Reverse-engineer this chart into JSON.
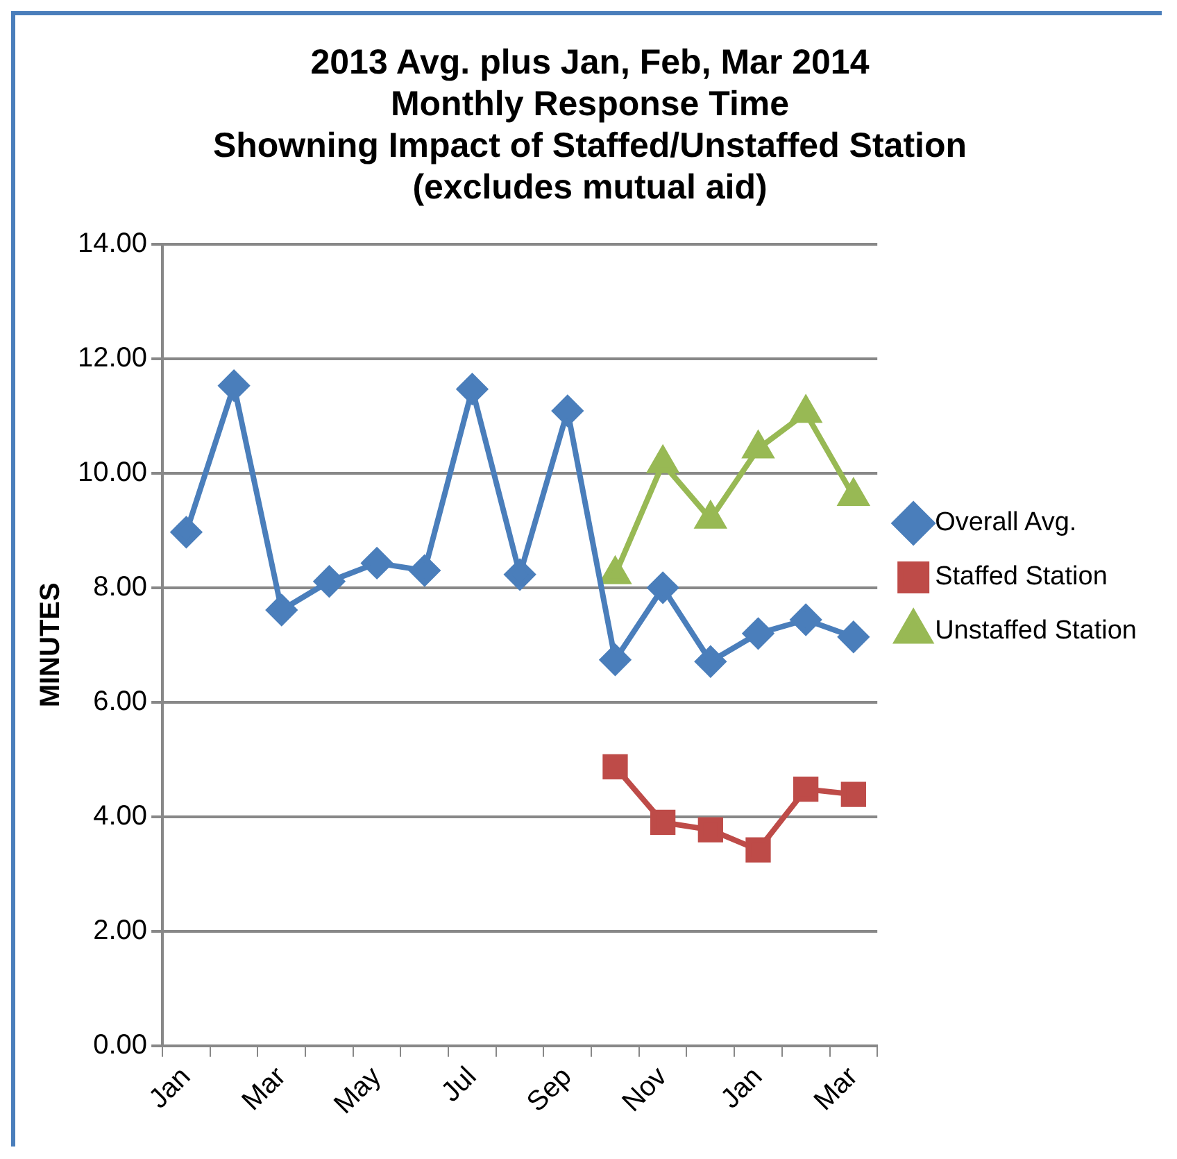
{
  "chart_data": {
    "type": "line",
    "title": [
      "2013 Avg. plus Jan, Feb, Mar 2014",
      "Monthly Response Time",
      "Showning Impact of Staffed/Unstaffed Station",
      "(excludes mutual aid)"
    ],
    "ylabel": "MINUTES",
    "categories": [
      "Jan",
      null,
      "Mar",
      null,
      "May",
      null,
      "Jul",
      null,
      "Sep",
      null,
      "Nov",
      null,
      "Jan",
      null,
      "Mar"
    ],
    "series": [
      {
        "name": "Overall Avg.",
        "color": "#4a7ebb",
        "marker": "diamond",
        "values": [
          8.97,
          11.53,
          7.61,
          8.11,
          8.43,
          8.3,
          11.47,
          8.23,
          11.09,
          6.74,
          8.0,
          6.71,
          7.2,
          7.44,
          7.14
        ]
      },
      {
        "name": "Staffed Station",
        "color": "#be4b48",
        "marker": "square",
        "values": [
          null,
          null,
          null,
          null,
          null,
          null,
          null,
          null,
          null,
          4.87,
          3.9,
          3.77,
          3.42,
          4.48,
          4.39
        ]
      },
      {
        "name": "Unstaffed Station",
        "color": "#98b954",
        "marker": "triangle",
        "values": [
          null,
          null,
          null,
          null,
          null,
          null,
          null,
          null,
          null,
          8.23,
          10.17,
          9.2,
          10.43,
          11.05,
          9.6
        ]
      }
    ],
    "ylim": [
      0,
      14
    ],
    "yticks": [
      {
        "value": 0,
        "label": "0.00"
      },
      {
        "value": 2,
        "label": "2.00"
      },
      {
        "value": 4,
        "label": "4.00"
      },
      {
        "value": 6,
        "label": "6.00"
      },
      {
        "value": 8,
        "label": "8.00"
      },
      {
        "value": 10,
        "label": "10.00"
      },
      {
        "value": 12,
        "label": "12.00"
      },
      {
        "value": 14,
        "label": "14.00"
      }
    ],
    "grid": "y",
    "legend": "right",
    "line_style": "solid"
  }
}
